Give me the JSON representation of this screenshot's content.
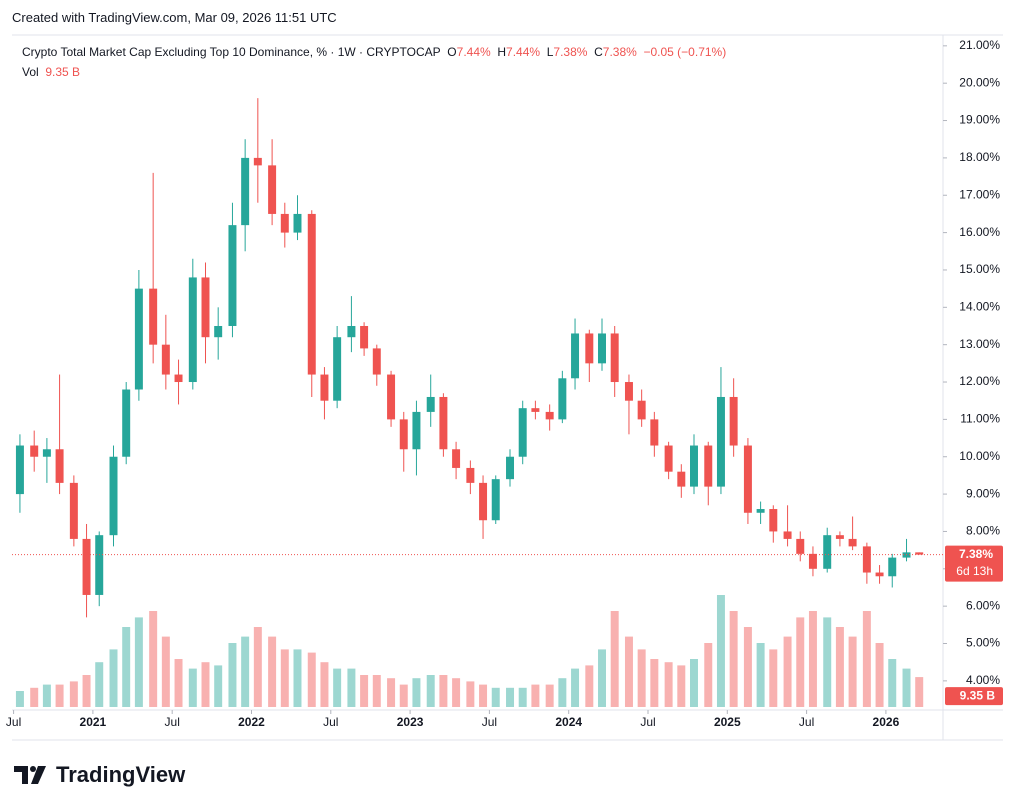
{
  "header": {
    "created": "Created with TradingView.com, Mar 09, 2026 11:51 UTC"
  },
  "chart_data": {
    "type": "candlestick",
    "title": "Crypto Total Market Cap Excluding Top 10 Dominance, % · 1W · CRYPTOCAP",
    "ohlc_labels": [
      {
        "label": "O",
        "value": "7.44%"
      },
      {
        "label": "H",
        "value": "7.44%"
      },
      {
        "label": "L",
        "value": "7.38%"
      },
      {
        "label": "C",
        "value": "7.38%"
      }
    ],
    "change": "−0.05 (−0.71%)",
    "x": [
      2020.54,
      2020.63,
      2020.71,
      2020.79,
      2020.88,
      2020.96,
      2021.04,
      2021.13,
      2021.21,
      2021.29,
      2021.38,
      2021.46,
      2021.54,
      2021.63,
      2021.71,
      2021.79,
      2021.88,
      2021.96,
      2022.04,
      2022.13,
      2022.21,
      2022.29,
      2022.38,
      2022.46,
      2022.54,
      2022.63,
      2022.71,
      2022.79,
      2022.88,
      2022.96,
      2023.04,
      2023.13,
      2023.21,
      2023.29,
      2023.38,
      2023.46,
      2023.54,
      2023.63,
      2023.71,
      2023.79,
      2023.88,
      2023.96,
      2024.04,
      2024.13,
      2024.21,
      2024.29,
      2024.38,
      2024.46,
      2024.54,
      2024.63,
      2024.71,
      2024.79,
      2024.88,
      2024.96,
      2025.04,
      2025.13,
      2025.21,
      2025.29,
      2025.38,
      2025.46,
      2025.54,
      2025.63,
      2025.71,
      2025.79,
      2025.88,
      2025.96,
      2026.04,
      2026.13,
      2026.21
    ],
    "open": [
      9.0,
      10.3,
      10.0,
      10.2,
      9.3,
      7.8,
      6.3,
      7.9,
      10.0,
      11.8,
      14.5,
      13.0,
      12.2,
      12.0,
      14.8,
      13.2,
      13.5,
      16.2,
      18.0,
      17.8,
      16.5,
      16.0,
      16.5,
      12.2,
      11.5,
      13.2,
      13.5,
      12.9,
      12.2,
      11.0,
      10.2,
      11.2,
      11.6,
      10.2,
      9.7,
      9.3,
      8.3,
      9.4,
      10.0,
      11.3,
      11.2,
      11.0,
      12.1,
      13.3,
      12.5,
      13.3,
      12.0,
      11.5,
      11.0,
      10.3,
      9.6,
      9.2,
      10.3,
      9.2,
      11.6,
      10.3,
      8.5,
      8.6,
      8.0,
      7.8,
      7.4,
      7.0,
      7.9,
      7.8,
      7.6,
      6.9,
      6.8,
      7.3,
      7.44
    ],
    "high": [
      10.6,
      10.7,
      10.5,
      12.2,
      9.5,
      8.2,
      8.0,
      10.3,
      12.0,
      15.0,
      17.6,
      13.8,
      12.6,
      15.3,
      15.2,
      14.0,
      16.8,
      18.5,
      19.6,
      18.5,
      16.8,
      17.0,
      16.6,
      12.4,
      13.5,
      14.3,
      13.6,
      13.0,
      12.3,
      11.2,
      11.5,
      12.2,
      11.7,
      10.4,
      9.9,
      9.5,
      9.5,
      10.2,
      11.5,
      11.5,
      11.4,
      12.3,
      13.7,
      13.4,
      13.7,
      13.5,
      12.2,
      11.8,
      11.2,
      10.4,
      9.8,
      10.6,
      10.4,
      12.4,
      12.1,
      10.5,
      8.8,
      8.7,
      8.7,
      8.0,
      7.6,
      8.1,
      8.0,
      8.4,
      7.7,
      7.1,
      7.4,
      7.8,
      7.44
    ],
    "low": [
      8.5,
      9.6,
      9.3,
      9.0,
      7.6,
      5.7,
      6.0,
      7.6,
      9.8,
      11.5,
      12.5,
      11.8,
      11.4,
      11.8,
      12.5,
      12.6,
      13.2,
      15.5,
      16.8,
      16.2,
      15.6,
      15.8,
      11.6,
      11.0,
      11.3,
      12.8,
      12.7,
      11.9,
      10.8,
      9.6,
      9.5,
      10.8,
      10.0,
      9.4,
      9.0,
      7.8,
      8.2,
      9.2,
      9.8,
      11.0,
      10.7,
      10.9,
      11.8,
      12.0,
      12.3,
      11.6,
      10.6,
      10.8,
      10.0,
      9.4,
      8.9,
      9.0,
      8.7,
      9.0,
      10.0,
      8.2,
      8.2,
      7.7,
      7.6,
      7.2,
      6.8,
      6.9,
      7.6,
      7.5,
      6.6,
      6.6,
      6.5,
      7.2,
      7.38
    ],
    "close": [
      10.3,
      10.0,
      10.2,
      9.3,
      7.8,
      6.3,
      7.9,
      10.0,
      11.8,
      14.5,
      13.0,
      12.2,
      12.0,
      14.8,
      13.2,
      13.5,
      16.2,
      18.0,
      17.8,
      16.5,
      16.0,
      16.5,
      12.2,
      11.5,
      13.2,
      13.5,
      12.9,
      12.2,
      11.0,
      10.2,
      11.2,
      11.6,
      10.2,
      9.7,
      9.3,
      8.3,
      9.4,
      10.0,
      11.3,
      11.2,
      11.0,
      12.1,
      13.3,
      12.5,
      13.3,
      12.0,
      11.5,
      11.0,
      10.3,
      9.6,
      9.2,
      10.3,
      9.2,
      11.6,
      10.3,
      8.5,
      8.6,
      8.0,
      7.8,
      7.4,
      7.0,
      7.9,
      7.8,
      7.6,
      6.9,
      6.8,
      7.3,
      7.44,
      7.38
    ],
    "volume": {
      "name": "Vol",
      "label": "9.35 B",
      "ylim": [
        0,
        55
      ],
      "values": [
        5,
        6,
        7,
        7,
        8,
        10,
        14,
        18,
        25,
        28,
        30,
        22,
        15,
        12,
        14,
        13,
        20,
        22,
        25,
        22,
        18,
        18,
        17,
        14,
        12,
        12,
        10,
        10,
        9,
        7,
        9,
        10,
        10,
        9,
        8,
        7,
        6,
        6,
        6,
        7,
        7,
        9,
        12,
        13,
        18,
        30,
        22,
        18,
        15,
        14,
        13,
        15,
        20,
        35,
        30,
        25,
        20,
        18,
        22,
        28,
        30,
        28,
        25,
        22,
        30,
        20,
        15,
        12,
        9.35
      ]
    },
    "up_color": "#26a69a",
    "down_color": "#ef5350",
    "xlim": [
      2020.49,
      2026.36
    ],
    "xticks": [
      {
        "value": 2020.5,
        "label": "Jul"
      },
      2021,
      {
        "value": 2021.5,
        "label": "Jul"
      },
      2022,
      {
        "value": 2022.5,
        "label": "Jul"
      },
      2023,
      {
        "value": 2023.5,
        "label": "Jul"
      },
      2024,
      {
        "value": 2024.5,
        "label": "Jul"
      },
      2025,
      {
        "value": 2025.5,
        "label": "Jul"
      },
      2026
    ],
    "ylim": [
      3.22,
      21.29
    ],
    "yticks": [
      {
        "value": 4,
        "label": "4.00%"
      },
      {
        "value": 5,
        "label": "5.00%"
      },
      {
        "value": 6,
        "label": "6.00%"
      },
      {
        "value": 7,
        "label": "7.00%"
      },
      {
        "value": 8,
        "label": "8.00%"
      },
      {
        "value": 9,
        "label": "9.00%"
      },
      {
        "value": 10,
        "label": "10.00%"
      },
      {
        "value": 11,
        "label": "11.00%"
      },
      {
        "value": 12,
        "label": "12.00%"
      },
      {
        "value": 13,
        "label": "13.00%"
      },
      {
        "value": 14,
        "label": "14.00%"
      },
      {
        "value": 15,
        "label": "15.00%"
      },
      {
        "value": 16,
        "label": "16.00%"
      },
      {
        "value": 17,
        "label": "17.00%"
      },
      {
        "value": 18,
        "label": "18.00%"
      },
      {
        "value": 19,
        "label": "19.00%"
      },
      {
        "value": 20,
        "label": "20.00%"
      },
      {
        "value": 21,
        "label": "21.00%"
      }
    ],
    "grid": false,
    "last_price": {
      "value": 7.38,
      "label": "7.38%"
    },
    "countdown": "6d 13h"
  },
  "footer": {
    "brand": "TradingView"
  }
}
